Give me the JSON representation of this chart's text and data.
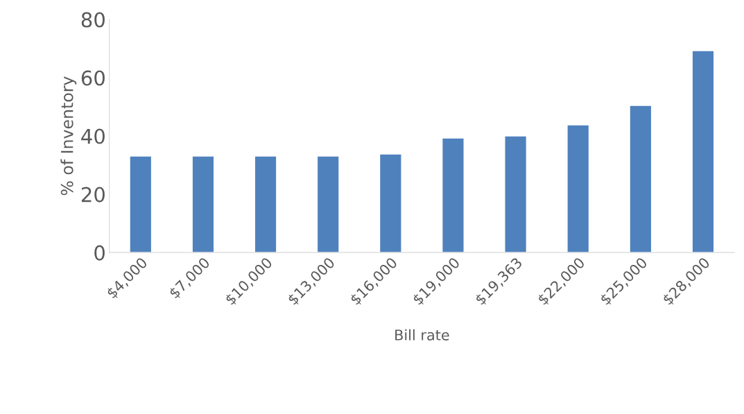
{
  "chart_data": {
    "type": "bar",
    "xlabel": "Bill rate",
    "ylabel": "% of Inventory",
    "categories": [
      "$4,000",
      "$7,000",
      "$10,000",
      "$13,000",
      "$16,000",
      "$19,000",
      "$19,363",
      "$22,000",
      "$25,000",
      "$28,000"
    ],
    "values": [
      33.1,
      33.1,
      33.1,
      33.1,
      33.8,
      39.3,
      40.0,
      43.8,
      50.5,
      69.3
    ],
    "color": "#4f81bd",
    "ylim": [
      0,
      80
    ],
    "yticks": [
      0,
      20,
      40,
      60,
      80
    ],
    "grid": false,
    "legend": false
  }
}
